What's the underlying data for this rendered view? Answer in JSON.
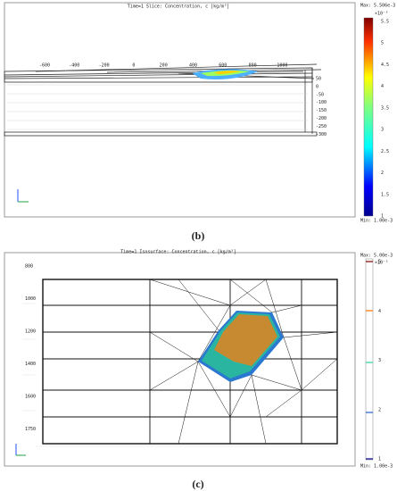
{
  "panel_b": {
    "title": "Time=1   Slice: Concentration, c [kg/m³]",
    "max": "Max: 5.506e-3",
    "exponent": "×10⁻³",
    "min": "Min: 1.00e-3",
    "colorbar_ticks": [
      "5.5",
      "5",
      "4.5",
      "4",
      "3.5",
      "3",
      "2.5",
      "2",
      "1.5",
      "1"
    ],
    "x_ticks": [
      "-600",
      "-400",
      "-200",
      "0",
      "200",
      "400",
      "600",
      "800",
      "1000"
    ],
    "z_ticks": [
      "50",
      "0",
      "-50",
      "-100",
      "-150",
      "-200",
      "-250",
      "-300"
    ],
    "caption": "(b)"
  },
  "panel_c": {
    "title": "Time=1   Isosurface: Concentration, c [kg/m³]",
    "max": "Max: 5.00e-3",
    "exponent": "×10⁻³",
    "min": "Min: 1.00e-3",
    "colorbar_ticks": [
      "5",
      "4",
      "3",
      "2",
      "1"
    ],
    "y_ticks": [
      "800",
      "1000",
      "1200",
      "1400",
      "1600",
      "1750"
    ],
    "caption": "(c)"
  }
}
